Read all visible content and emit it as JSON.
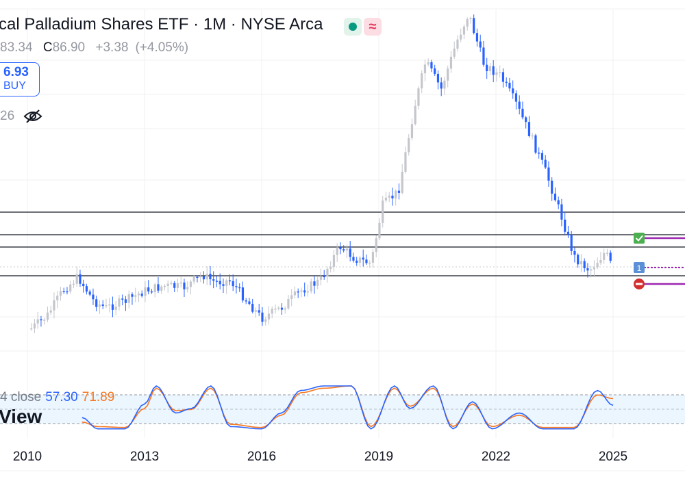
{
  "header": {
    "title": "cal Palladium Shares ETF · 1M · NYSE Arca",
    "open_label": "",
    "open_value": "83.34",
    "close_label": "C",
    "close_value": "86.90",
    "change": "+3.38",
    "change_pct": "(+4.05%)"
  },
  "status": {
    "market_open_icon": "green-dot-icon",
    "indicator_icon": "approx-icon",
    "indicator_glyph": "≈"
  },
  "buy_button": {
    "price": "6.93",
    "label": "BUY"
  },
  "volume": {
    "value": "26",
    "visibility_icon": "eye-off-icon"
  },
  "stochastic": {
    "label": "4 close",
    "k_value": "57.30",
    "d_value": "71.89"
  },
  "watermark": "View",
  "marker_icons": [
    "checkmark-icon",
    "position-one-icon",
    "no-entry-icon"
  ],
  "marker_glyphs": {
    "position": "1"
  },
  "colors": {
    "up_candle": "#c4c6cc",
    "down_candle": "#2962ff",
    "stoch_k": "#2962ff",
    "stoch_d": "#f7761f",
    "stoch_band": "#e3f2fd",
    "order_line": "#9c27b0",
    "check_green": "#4caf50",
    "stop_red": "#d32f2f"
  },
  "chart_data": [
    {
      "type": "candlestick",
      "interval": "1M",
      "x_axis": {
        "tick_labels": [
          "2010",
          "2013",
          "2016",
          "2019",
          "2022",
          "2025"
        ]
      },
      "approx_ohlc_path": [
        [
          2010.1,
          48
        ],
        [
          2010.5,
          52
        ],
        [
          2010.9,
          75
        ],
        [
          2011.3,
          80
        ],
        [
          2011.7,
          65
        ],
        [
          2012.0,
          58
        ],
        [
          2012.5,
          62
        ],
        [
          2013.0,
          70
        ],
        [
          2013.5,
          72
        ],
        [
          2014.0,
          74
        ],
        [
          2014.5,
          84
        ],
        [
          2014.8,
          80
        ],
        [
          2015.2,
          78
        ],
        [
          2015.6,
          64
        ],
        [
          2016.0,
          50
        ],
        [
          2016.5,
          60
        ],
        [
          2017.0,
          76
        ],
        [
          2017.5,
          84
        ],
        [
          2018.0,
          104
        ],
        [
          2018.4,
          98
        ],
        [
          2018.8,
          96
        ],
        [
          2019.1,
          132
        ],
        [
          2019.5,
          155
        ],
        [
          2019.9,
          188
        ],
        [
          2020.2,
          220
        ],
        [
          2020.6,
          210
        ],
        [
          2021.0,
          235
        ],
        [
          2021.3,
          270
        ],
        [
          2021.7,
          240
        ],
        [
          2022.1,
          230
        ],
        [
          2022.5,
          205
        ],
        [
          2022.9,
          185
        ],
        [
          2023.3,
          150
        ],
        [
          2023.7,
          125
        ],
        [
          2024.0,
          98
        ],
        [
          2024.4,
          92
        ],
        [
          2024.8,
          103
        ],
        [
          2025.0,
          87
        ]
      ],
      "horizontal_levels": [
        145,
        129,
        112,
        80
      ],
      "last_close": 86.9
    },
    {
      "type": "line",
      "title": "Stochastic",
      "ylim": [
        0,
        100
      ],
      "bands": [
        80,
        50,
        20
      ],
      "series": [
        {
          "name": "",
          "values_approx": [
            [
              2011.4,
              30
            ],
            [
              2011.8,
              5
            ],
            [
              2012.5,
              5
            ],
            [
              2013.0,
              60
            ],
            [
              2013.3,
              100
            ],
            [
              2013.8,
              40
            ],
            [
              2014.2,
              50
            ],
            [
              2014.7,
              100
            ],
            [
              2015.2,
              10
            ],
            [
              2016.0,
              5
            ],
            [
              2016.5,
              40
            ],
            [
              2017.0,
              90
            ],
            [
              2017.6,
              100
            ],
            [
              2018.3,
              100
            ],
            [
              2018.8,
              5
            ],
            [
              2019.4,
              100
            ],
            [
              2019.8,
              50
            ],
            [
              2020.4,
              100
            ],
            [
              2020.9,
              5
            ],
            [
              2021.4,
              65
            ],
            [
              2021.9,
              5
            ],
            [
              2022.6,
              40
            ],
            [
              2023.2,
              5
            ],
            [
              2024.0,
              5
            ],
            [
              2024.6,
              90
            ],
            [
              2025.0,
              57
            ]
          ]
        },
        {
          "name": "",
          "values_approx": [
            [
              2011.4,
              20
            ],
            [
              2011.8,
              10
            ],
            [
              2012.5,
              8
            ],
            [
              2013.0,
              50
            ],
            [
              2013.3,
              95
            ],
            [
              2013.8,
              45
            ],
            [
              2014.2,
              48
            ],
            [
              2014.7,
              95
            ],
            [
              2015.2,
              15
            ],
            [
              2016.0,
              8
            ],
            [
              2016.5,
              35
            ],
            [
              2017.0,
              85
            ],
            [
              2017.6,
              95
            ],
            [
              2018.3,
              100
            ],
            [
              2018.8,
              10
            ],
            [
              2019.4,
              95
            ],
            [
              2019.8,
              55
            ],
            [
              2020.4,
              95
            ],
            [
              2020.9,
              10
            ],
            [
              2021.4,
              60
            ],
            [
              2021.9,
              10
            ],
            [
              2022.6,
              35
            ],
            [
              2023.2,
              8
            ],
            [
              2024.0,
              8
            ],
            [
              2024.6,
              80
            ],
            [
              2025.0,
              72
            ]
          ]
        }
      ]
    }
  ]
}
